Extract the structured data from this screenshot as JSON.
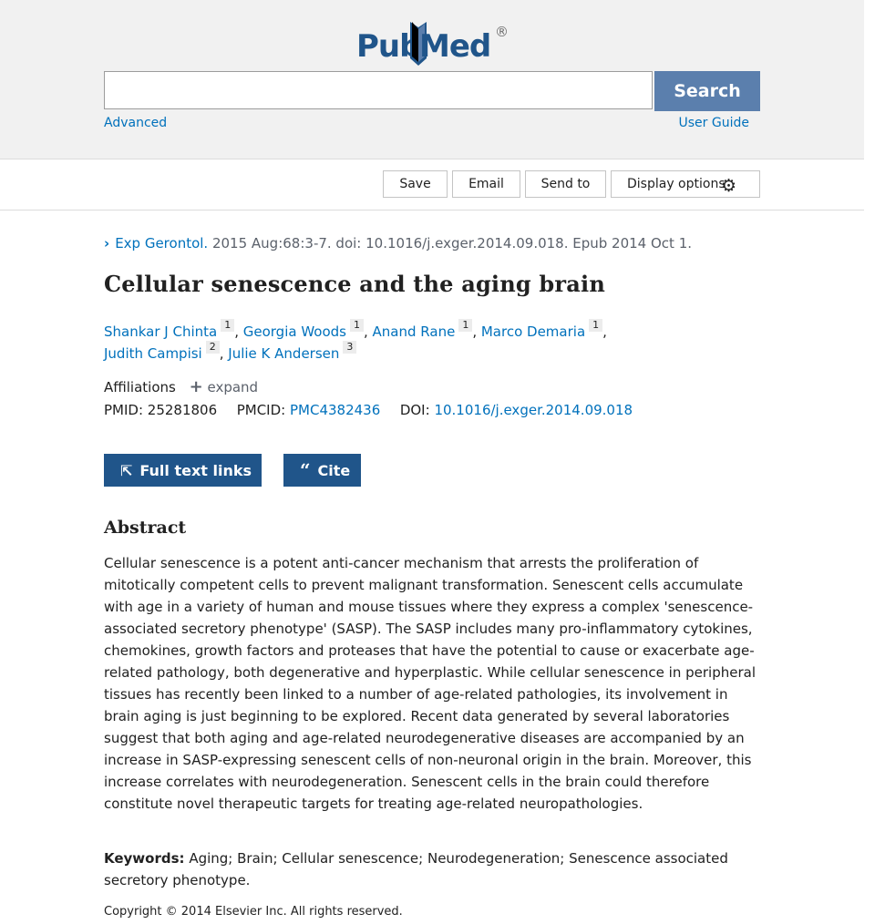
{
  "header": {
    "logo_part1": "Pub",
    "logo_part2": "Med",
    "logo_registered": "®",
    "search_value": "",
    "search_button": "Search",
    "advanced_link": "Advanced",
    "user_guide_link": "User Guide"
  },
  "toolbar": {
    "save": "Save",
    "email": "Email",
    "send_to": "Send to",
    "display_options": "Display options"
  },
  "citation": {
    "journal": "Exp Gerontol.",
    "details": " 2015 Aug:68:3-7. doi: 10.1016/j.exger.2014.09.018. Epub 2014 Oct 1."
  },
  "article": {
    "title": "Cellular senescence and the aging brain",
    "authors": [
      {
        "name": "Shankar J Chinta",
        "aff": "1"
      },
      {
        "name": "Georgia Woods",
        "aff": "1"
      },
      {
        "name": "Anand Rane",
        "aff": "1"
      },
      {
        "name": "Marco Demaria",
        "aff": "1"
      },
      {
        "name": "Judith Campisi",
        "aff": "2"
      },
      {
        "name": "Julie K Andersen",
        "aff": "3"
      }
    ],
    "affiliations_label": "Affiliations",
    "expand_label": "expand",
    "pmid_label": "PMID:",
    "pmid": "25281806",
    "pmcid_label": "PMCID:",
    "pmcid": "PMC4382436",
    "doi_label": "DOI:",
    "doi": "10.1016/j.exger.2014.09.018"
  },
  "actions": {
    "full_text_links": "Full text links",
    "cite": "Cite"
  },
  "abstract": {
    "heading": "Abstract",
    "text": "Cellular senescence is a potent anti-cancer mechanism that arrests the proliferation of mitotically competent cells to prevent malignant transformation. Senescent cells accumulate with age in a variety of human and mouse tissues where they express a complex 'senescence-associated secretory phenotype' (SASP). The SASP includes many pro-inflammatory cytokines, chemokines, growth factors and proteases that have the potential to cause or exacerbate age-related pathology, both degenerative and hyperplastic. While cellular senescence in peripheral tissues has recently been linked to a number of age-related pathologies, its involvement in brain aging is just beginning to be explored. Recent data generated by several laboratories suggest that both aging and age-related neurodegenerative diseases are accompanied by an increase in SASP-expressing senescent cells of non-neuronal origin in the brain. Moreover, this increase correlates with neurodegeneration. Senescent cells in the brain could therefore constitute novel therapeutic targets for treating age-related neuropathologies."
  },
  "keywords": {
    "label": "Keywords:",
    "text": "Aging; Brain; Cellular senescence; Neurodegeneration; Senescence associated secretory phenotype."
  },
  "copyright": "Copyright © 2014 Elsevier Inc. All rights reserved.",
  "colors": {
    "brand": "#20558a",
    "link": "#0071bc",
    "search_button": "#5b7fad"
  },
  "icons": {
    "logo_book": "pubmed-book-icon",
    "display_gear": "gear-icon",
    "citation_chevron": "chevron-right-icon",
    "affiliations_expand": "plus-icon",
    "full_text": "external-link-icon",
    "cite": "quote-icon"
  }
}
